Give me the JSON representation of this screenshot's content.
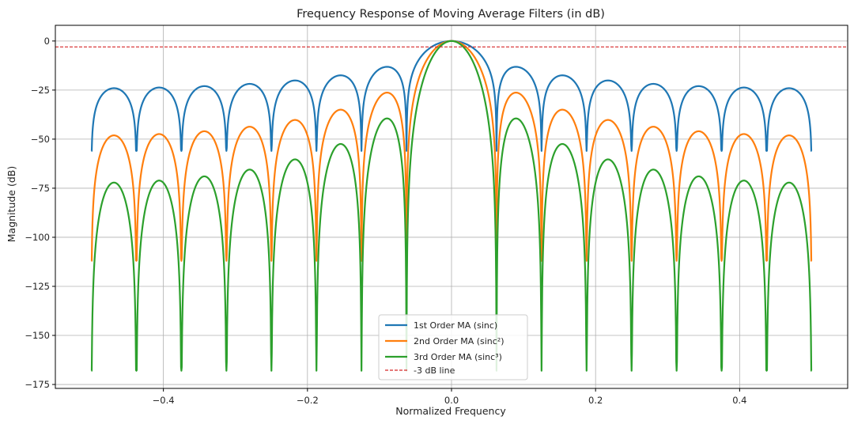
{
  "chart_data": {
    "type": "line",
    "title": "Frequency Response of Moving Average Filters (in dB)",
    "xlabel": "Normalized Frequency",
    "ylabel": "Magnitude (dB)",
    "xlim": [
      -0.55,
      0.55
    ],
    "ylim": [
      -177,
      8
    ],
    "xticks": [
      -0.4,
      -0.2,
      0.0,
      0.2,
      0.4
    ],
    "xtick_labels": [
      "−0.4",
      "−0.2",
      "0.0",
      "0.2",
      "0.4"
    ],
    "yticks": [
      0,
      -25,
      -50,
      -75,
      -100,
      -125,
      -150,
      -175
    ],
    "ytick_labels": [
      "0",
      "−25",
      "−50",
      "−75",
      "−100",
      "−125",
      "−150",
      "−175"
    ],
    "grid": true,
    "legend_position": "bottom-center",
    "filter_length": 16,
    "x_range": [
      -0.5,
      0.5
    ],
    "sample_count": 2000,
    "null_floor_db": [
      -56,
      -112,
      -168
    ],
    "series": [
      {
        "name": "1st Order MA (sinc)",
        "order": 1,
        "color": "#1f77b4",
        "style": "solid"
      },
      {
        "name": "2nd Order MA (sinc²)",
        "order": 2,
        "color": "#ff7f0e",
        "style": "solid"
      },
      {
        "name": "3rd Order MA (sinc³)",
        "order": 3,
        "color": "#2ca02c",
        "style": "solid"
      },
      {
        "name": "-3 dB line",
        "value": -3,
        "color": "#d62728",
        "style": "dashed"
      }
    ]
  }
}
